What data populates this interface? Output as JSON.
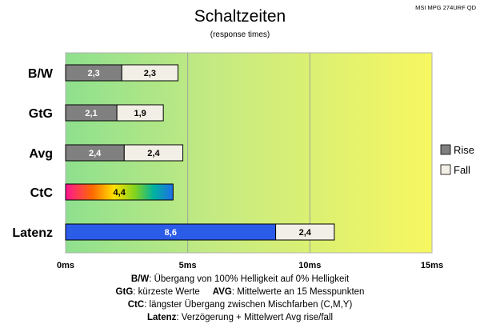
{
  "chart_data": {
    "type": "bar",
    "orientation": "horizontal",
    "stacked": true,
    "title": "Schaltzeiten",
    "subtitle": "(response times)",
    "model": "MSI MPG 274URF QD",
    "categories": [
      "B/W",
      "GtG",
      "Avg",
      "CtC",
      "Latenz"
    ],
    "series": [
      {
        "name": "Rise",
        "values": [
          2.3,
          2.1,
          2.4,
          4.4,
          8.6
        ],
        "labels": [
          "2,3",
          "2,1",
          "2,4",
          "4,4",
          "8,6"
        ]
      },
      {
        "name": "Fall",
        "values": [
          2.3,
          1.9,
          2.4,
          0,
          2.4
        ],
        "labels": [
          "2,3",
          "1,9",
          "2,4",
          "",
          "2,4"
        ]
      }
    ],
    "xlim": [
      0,
      15
    ],
    "xticks": [
      0,
      5,
      10,
      15
    ],
    "xtick_labels": [
      "0ms",
      "5ms",
      "10ms",
      "15ms"
    ],
    "legend": [
      "Rise",
      "Fall"
    ],
    "legend_position": "right",
    "colors": {
      "rise": "#808080",
      "fall": "#f2f0e6",
      "latency": "#2b5ce8",
      "background_start": "#8ee08e",
      "background_end": "#f7f760"
    },
    "footnotes": [
      {
        "label": "B/W",
        "text": ":  Übergang von 100% Helligkeit auf 0% Helligkeit"
      },
      {
        "label": "GtG",
        "text": ": kürzeste  Werte",
        "label2": "AVG",
        "text2": ": Mittelwerte  an 15 Messpunkten"
      },
      {
        "label": "CtC",
        "text": ": längster Übergang  zwischen Mischfarben  (C,M,Y)"
      },
      {
        "label": "Latenz",
        "text": ": Verzögerung  + Mittelwert Avg rise/fall"
      }
    ]
  }
}
